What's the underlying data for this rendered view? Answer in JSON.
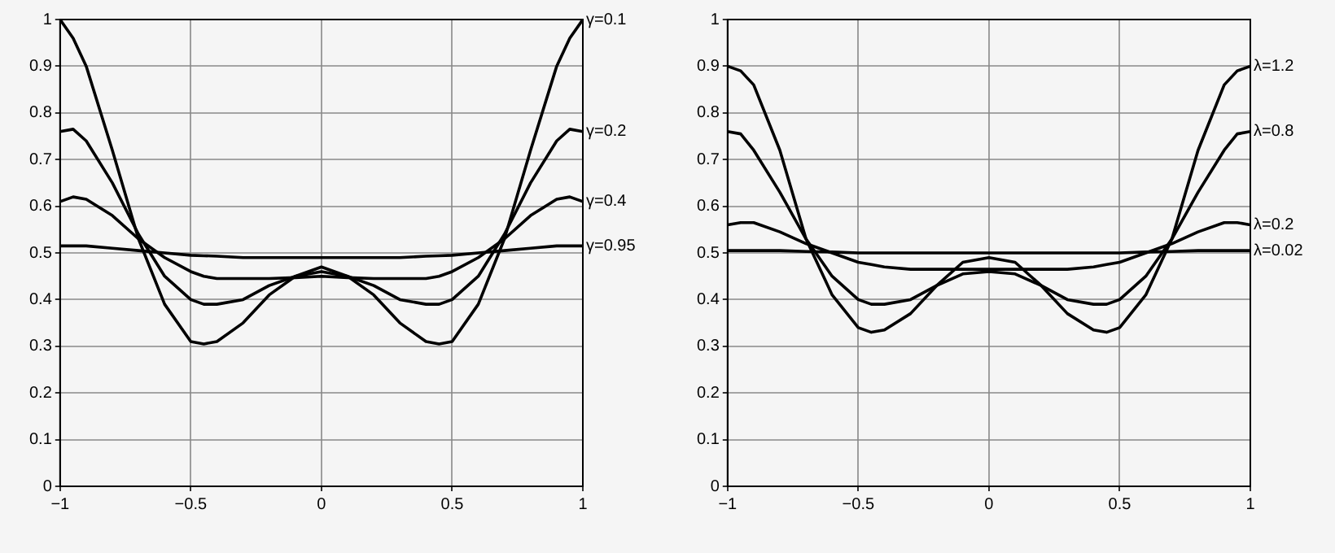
{
  "chart_data": [
    {
      "type": "line",
      "x": [
        -1,
        -0.95,
        -0.9,
        -0.8,
        -0.7,
        -0.6,
        -0.5,
        -0.45,
        -0.4,
        -0.3,
        -0.2,
        -0.1,
        0,
        0.1,
        0.2,
        0.3,
        0.4,
        0.45,
        0.5,
        0.6,
        0.7,
        0.8,
        0.9,
        0.95,
        1
      ],
      "series": [
        {
          "name": "γ=0.1",
          "color": "#000000",
          "values": [
            1.0,
            0.96,
            0.9,
            0.72,
            0.53,
            0.39,
            0.31,
            0.305,
            0.31,
            0.35,
            0.41,
            0.45,
            0.47,
            0.45,
            0.41,
            0.35,
            0.31,
            0.305,
            0.31,
            0.39,
            0.53,
            0.72,
            0.9,
            0.96,
            1.0
          ]
        },
        {
          "name": "γ=0.2",
          "color": "#000000",
          "values": [
            0.76,
            0.765,
            0.74,
            0.65,
            0.54,
            0.45,
            0.4,
            0.39,
            0.39,
            0.4,
            0.43,
            0.45,
            0.46,
            0.45,
            0.43,
            0.4,
            0.39,
            0.39,
            0.4,
            0.45,
            0.54,
            0.65,
            0.74,
            0.765,
            0.76
          ]
        },
        {
          "name": "γ=0.4",
          "color": "#000000",
          "values": [
            0.61,
            0.62,
            0.615,
            0.58,
            0.53,
            0.49,
            0.46,
            0.45,
            0.445,
            0.445,
            0.445,
            0.447,
            0.45,
            0.447,
            0.445,
            0.445,
            0.445,
            0.45,
            0.46,
            0.49,
            0.53,
            0.58,
            0.615,
            0.62,
            0.61
          ]
        },
        {
          "name": "γ=0.95",
          "color": "#000000",
          "values": [
            0.515,
            0.515,
            0.515,
            0.51,
            0.505,
            0.5,
            0.495,
            0.494,
            0.493,
            0.49,
            0.49,
            0.49,
            0.49,
            0.49,
            0.49,
            0.49,
            0.493,
            0.494,
            0.495,
            0.5,
            0.505,
            0.51,
            0.515,
            0.515,
            0.515
          ]
        }
      ],
      "xlim": [
        -1,
        1
      ],
      "xticks": [
        -1,
        -0.5,
        0,
        0.5,
        1
      ],
      "ylim": [
        0,
        1
      ],
      "yticks": [
        0,
        0.1,
        0.2,
        0.3,
        0.4,
        0.5,
        0.6,
        0.7,
        0.8,
        0.9,
        1
      ],
      "grid": true,
      "legend": false,
      "marker": "none",
      "line_style": "solid"
    },
    {
      "type": "line",
      "x": [
        -1,
        -0.95,
        -0.9,
        -0.8,
        -0.7,
        -0.6,
        -0.5,
        -0.45,
        -0.4,
        -0.3,
        -0.2,
        -0.1,
        0,
        0.1,
        0.2,
        0.3,
        0.4,
        0.45,
        0.5,
        0.6,
        0.7,
        0.8,
        0.9,
        0.95,
        1
      ],
      "series": [
        {
          "name": "λ=1.2",
          "color": "#000000",
          "values": [
            0.9,
            0.89,
            0.86,
            0.72,
            0.53,
            0.41,
            0.34,
            0.33,
            0.335,
            0.37,
            0.43,
            0.48,
            0.49,
            0.48,
            0.43,
            0.37,
            0.335,
            0.33,
            0.34,
            0.41,
            0.53,
            0.72,
            0.86,
            0.89,
            0.9
          ]
        },
        {
          "name": "λ=0.8",
          "color": "#000000",
          "values": [
            0.76,
            0.755,
            0.72,
            0.63,
            0.53,
            0.45,
            0.4,
            0.39,
            0.39,
            0.4,
            0.43,
            0.455,
            0.46,
            0.455,
            0.43,
            0.4,
            0.39,
            0.39,
            0.4,
            0.45,
            0.53,
            0.63,
            0.72,
            0.755,
            0.76
          ]
        },
        {
          "name": "λ=0.2",
          "color": "#000000",
          "values": [
            0.56,
            0.565,
            0.565,
            0.545,
            0.52,
            0.5,
            0.48,
            0.475,
            0.47,
            0.465,
            0.465,
            0.465,
            0.465,
            0.465,
            0.465,
            0.465,
            0.47,
            0.475,
            0.48,
            0.5,
            0.52,
            0.545,
            0.565,
            0.565,
            0.56
          ]
        },
        {
          "name": "λ=0.02",
          "color": "#000000",
          "values": [
            0.505,
            0.505,
            0.505,
            0.505,
            0.503,
            0.502,
            0.5,
            0.5,
            0.5,
            0.5,
            0.5,
            0.5,
            0.5,
            0.5,
            0.5,
            0.5,
            0.5,
            0.5,
            0.5,
            0.502,
            0.503,
            0.505,
            0.505,
            0.505,
            0.505
          ]
        }
      ],
      "xlim": [
        -1,
        1
      ],
      "xticks": [
        -1,
        -0.5,
        0,
        0.5,
        1
      ],
      "ylim": [
        0,
        1
      ],
      "yticks": [
        0,
        0.1,
        0.2,
        0.3,
        0.4,
        0.5,
        0.6,
        0.7,
        0.8,
        0.9,
        1
      ],
      "grid": true,
      "legend": false,
      "marker": "none",
      "line_style": "solid"
    }
  ]
}
